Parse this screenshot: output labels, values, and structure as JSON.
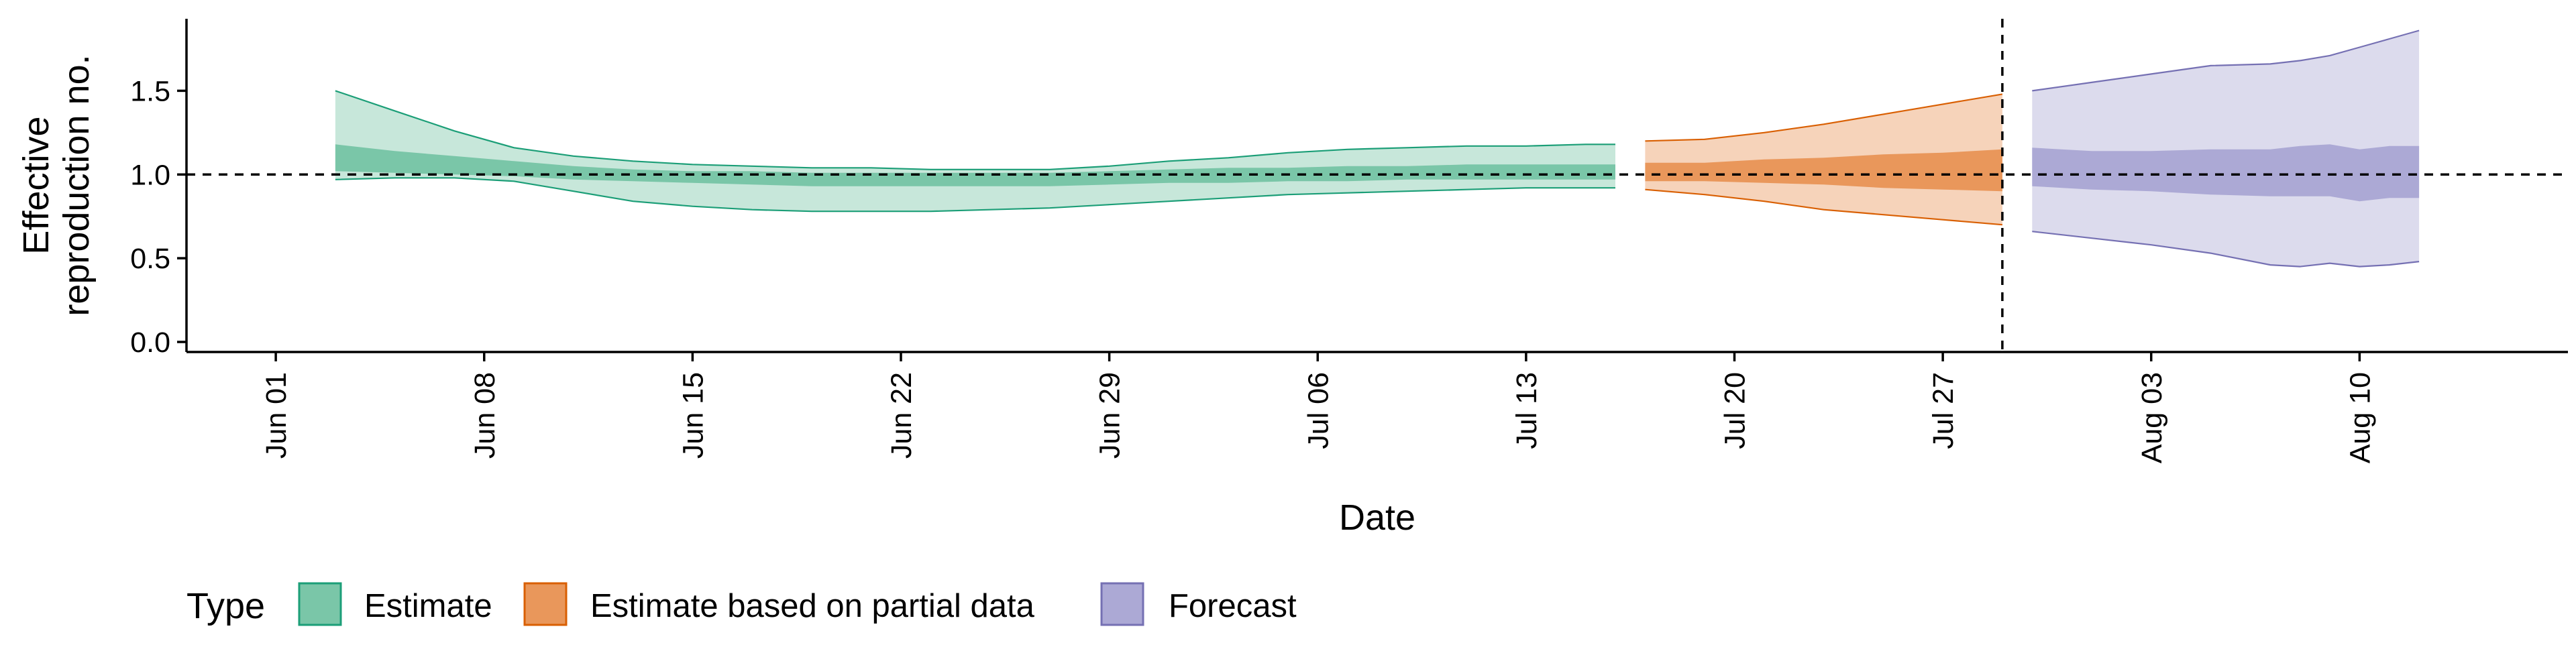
{
  "chart_data": {
    "type": "area",
    "xlabel": "Date",
    "ylabel": [
      "Effective",
      "reproduction no."
    ],
    "ylim": [
      -0.06,
      1.93
    ],
    "xlim": [
      "2020-05-29",
      "2020-08-17"
    ],
    "y_ticks": [
      0.0,
      0.5,
      1.0,
      1.5
    ],
    "y_tick_labels": [
      "0.0",
      "0.5",
      "1.0",
      "1.5"
    ],
    "x_ticks": [
      "2020-06-01",
      "2020-06-08",
      "2020-06-15",
      "2020-06-22",
      "2020-06-29",
      "2020-07-06",
      "2020-07-13",
      "2020-07-20",
      "2020-07-27",
      "2020-08-03",
      "2020-08-10"
    ],
    "x_tick_labels": [
      "Jun 01",
      "Jun 08",
      "Jun 15",
      "Jun 22",
      "Jun 29",
      "Jul 06",
      "Jul 13",
      "Jul 20",
      "Jul 27",
      "Aug 03",
      "Aug 10"
    ],
    "reference_line_y": 1.0,
    "vertical_line_x": "2020-07-29",
    "grid": false,
    "legend": {
      "title": "Type",
      "placement": "bottom-left",
      "items": [
        "Estimate",
        "Estimate based on partial data",
        "Forecast"
      ]
    },
    "series": [
      {
        "name": "Estimate",
        "color": "#1b9e77",
        "fill": "#7ac6a8",
        "x": [
          "2020-06-03",
          "2020-06-05",
          "2020-06-07",
          "2020-06-09",
          "2020-06-11",
          "2020-06-13",
          "2020-06-15",
          "2020-06-17",
          "2020-06-19",
          "2020-06-21",
          "2020-06-23",
          "2020-06-25",
          "2020-06-27",
          "2020-06-29",
          "2020-07-01",
          "2020-07-03",
          "2020-07-05",
          "2020-07-07",
          "2020-07-09",
          "2020-07-11",
          "2020-07-13",
          "2020-07-15",
          "2020-07-16"
        ],
        "outer_upper": [
          1.5,
          1.38,
          1.26,
          1.16,
          1.11,
          1.08,
          1.06,
          1.05,
          1.04,
          1.04,
          1.03,
          1.03,
          1.03,
          1.05,
          1.08,
          1.1,
          1.13,
          1.15,
          1.16,
          1.17,
          1.17,
          1.18,
          1.18
        ],
        "inner_upper": [
          1.18,
          1.14,
          1.11,
          1.08,
          1.05,
          1.03,
          1.02,
          1.02,
          1.01,
          1.01,
          1.01,
          1.01,
          1.01,
          1.02,
          1.03,
          1.04,
          1.04,
          1.05,
          1.05,
          1.06,
          1.06,
          1.06,
          1.06
        ],
        "inner_lower": [
          1.02,
          1.01,
          1.0,
          0.99,
          0.97,
          0.96,
          0.95,
          0.94,
          0.93,
          0.93,
          0.93,
          0.93,
          0.93,
          0.94,
          0.95,
          0.95,
          0.96,
          0.96,
          0.97,
          0.97,
          0.97,
          0.97,
          0.97
        ],
        "outer_lower": [
          0.97,
          0.98,
          0.98,
          0.96,
          0.9,
          0.84,
          0.81,
          0.79,
          0.78,
          0.78,
          0.78,
          0.79,
          0.8,
          0.82,
          0.84,
          0.86,
          0.88,
          0.89,
          0.9,
          0.91,
          0.92,
          0.92,
          0.92
        ]
      },
      {
        "name": "Estimate based on partial data",
        "color": "#d95f02",
        "fill": "#e9975b",
        "x": [
          "2020-07-17",
          "2020-07-19",
          "2020-07-21",
          "2020-07-23",
          "2020-07-25",
          "2020-07-27",
          "2020-07-29"
        ],
        "outer_upper": [
          1.2,
          1.21,
          1.25,
          1.3,
          1.36,
          1.42,
          1.48
        ],
        "inner_upper": [
          1.07,
          1.07,
          1.09,
          1.1,
          1.12,
          1.13,
          1.15
        ],
        "inner_lower": [
          0.96,
          0.96,
          0.95,
          0.94,
          0.92,
          0.91,
          0.9
        ],
        "outer_lower": [
          0.91,
          0.88,
          0.84,
          0.79,
          0.76,
          0.73,
          0.7
        ]
      },
      {
        "name": "Forecast",
        "color": "#7570b3",
        "fill": "#aca9d5",
        "x": [
          "2020-07-30",
          "2020-08-01",
          "2020-08-03",
          "2020-08-05",
          "2020-08-07",
          "2020-08-08",
          "2020-08-09",
          "2020-08-10",
          "2020-08-11",
          "2020-08-12"
        ],
        "outer_upper": [
          1.5,
          1.55,
          1.6,
          1.65,
          1.66,
          1.68,
          1.71,
          1.76,
          1.81,
          1.86
        ],
        "inner_upper": [
          1.16,
          1.14,
          1.14,
          1.15,
          1.15,
          1.17,
          1.18,
          1.15,
          1.17,
          1.17
        ],
        "inner_lower": [
          0.93,
          0.91,
          0.9,
          0.88,
          0.87,
          0.87,
          0.87,
          0.84,
          0.86,
          0.86
        ],
        "outer_lower": [
          0.66,
          0.62,
          0.58,
          0.53,
          0.46,
          0.45,
          0.47,
          0.45,
          0.46,
          0.48
        ]
      }
    ]
  }
}
